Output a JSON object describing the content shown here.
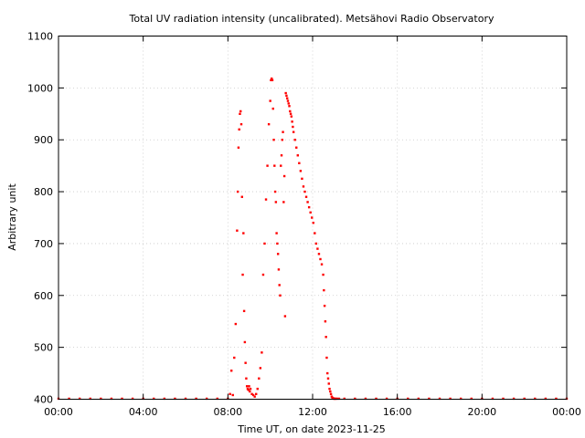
{
  "chart_data": {
    "type": "scatter",
    "title": "Total UV radiation intensity (uncalibrated). Metsähovi Radio Observatory",
    "xlabel": "Time UT, on date 2023-11-25",
    "ylabel": "Arbitrary unit",
    "xlim": [
      "00:00",
      "24:00"
    ],
    "ylim": [
      400,
      1100
    ],
    "x_tick_labels": [
      "00:00",
      "04:00",
      "08:00",
      "12:00",
      "16:00",
      "20:00",
      "00:00"
    ],
    "y_tick_labels": [
      "400",
      "500",
      "600",
      "700",
      "800",
      "900",
      "1000",
      "1100"
    ],
    "grid": true,
    "marker_color": "#ff0000",
    "series": [
      {
        "x": [
          "00:00",
          "00:30",
          "01:00",
          "01:30",
          "02:00",
          "02:30",
          "03:00",
          "03:30",
          "04:00",
          "04:30",
          "05:00",
          "05:30",
          "06:00",
          "06:30",
          "07:00",
          "07:30",
          "08:00",
          "08:06",
          "08:10",
          "08:14",
          "08:18",
          "08:22",
          "08:26",
          "08:28",
          "08:30",
          "08:32",
          "08:34",
          "08:36",
          "08:38",
          "08:40",
          "08:42",
          "08:44",
          "08:46",
          "08:48",
          "08:50",
          "08:52",
          "08:54",
          "08:56",
          "08:58",
          "09:00",
          "09:02",
          "09:04",
          "09:08",
          "09:12",
          "09:16",
          "09:20",
          "09:24",
          "09:28",
          "09:32",
          "09:36",
          "09:40",
          "09:44",
          "09:48",
          "09:52",
          "09:56",
          "10:00",
          "10:02",
          "10:04",
          "10:06",
          "10:08",
          "10:10",
          "10:12",
          "10:14",
          "10:16",
          "10:18",
          "10:20",
          "10:22",
          "10:24",
          "10:26",
          "10:28",
          "10:30",
          "10:32",
          "10:34",
          "10:36",
          "10:38",
          "10:40",
          "10:42",
          "10:44",
          "10:46",
          "10:48",
          "10:50",
          "10:52",
          "10:54",
          "10:56",
          "10:58",
          "11:00",
          "11:02",
          "11:04",
          "11:06",
          "11:10",
          "11:14",
          "11:18",
          "11:22",
          "11:26",
          "11:30",
          "11:34",
          "11:38",
          "11:42",
          "11:46",
          "11:50",
          "11:54",
          "11:58",
          "12:02",
          "12:06",
          "12:10",
          "12:14",
          "12:18",
          "12:22",
          "12:26",
          "12:30",
          "12:32",
          "12:34",
          "12:36",
          "12:38",
          "12:40",
          "12:42",
          "12:44",
          "12:46",
          "12:48",
          "12:50",
          "12:52",
          "12:54",
          "12:56",
          "12:58",
          "13:00",
          "13:02",
          "13:04",
          "13:06",
          "13:10",
          "13:15",
          "13:30",
          "14:00",
          "14:30",
          "15:00",
          "15:30",
          "16:00",
          "16:30",
          "17:00",
          "17:30",
          "18:00",
          "18:30",
          "19:00",
          "19:30",
          "20:00",
          "20:30",
          "21:00",
          "21:30",
          "22:00",
          "22:30",
          "23:00",
          "23:30",
          "24:00"
        ],
        "y": [
          401,
          401,
          401,
          401,
          401,
          401,
          401,
          401,
          401,
          401,
          401,
          401,
          401,
          401,
          401,
          401,
          401,
          410,
          455,
          408,
          480,
          545,
          725,
          800,
          885,
          920,
          950,
          955,
          930,
          790,
          640,
          720,
          570,
          510,
          470,
          440,
          425,
          420,
          418,
          425,
          415,
          420,
          410,
          408,
          405,
          410,
          420,
          440,
          460,
          490,
          640,
          700,
          785,
          850,
          930,
          975,
          1015,
          1018,
          1015,
          960,
          900,
          850,
          800,
          780,
          720,
          700,
          680,
          650,
          620,
          600,
          850,
          870,
          900,
          915,
          780,
          830,
          560,
          990,
          985,
          980,
          975,
          970,
          965,
          955,
          950,
          945,
          935,
          925,
          915,
          900,
          885,
          870,
          855,
          840,
          825,
          810,
          800,
          790,
          780,
          770,
          760,
          750,
          740,
          720,
          700,
          690,
          680,
          670,
          660,
          640,
          610,
          580,
          550,
          520,
          480,
          450,
          440,
          430,
          420,
          415,
          410,
          405,
          403,
          402,
          401,
          401,
          401,
          401,
          401,
          401,
          401,
          401,
          401,
          401,
          401,
          401,
          401,
          401,
          401,
          401,
          401,
          401,
          401,
          401,
          401,
          401,
          401,
          401,
          401,
          401,
          401,
          401
        ]
      }
    ]
  }
}
